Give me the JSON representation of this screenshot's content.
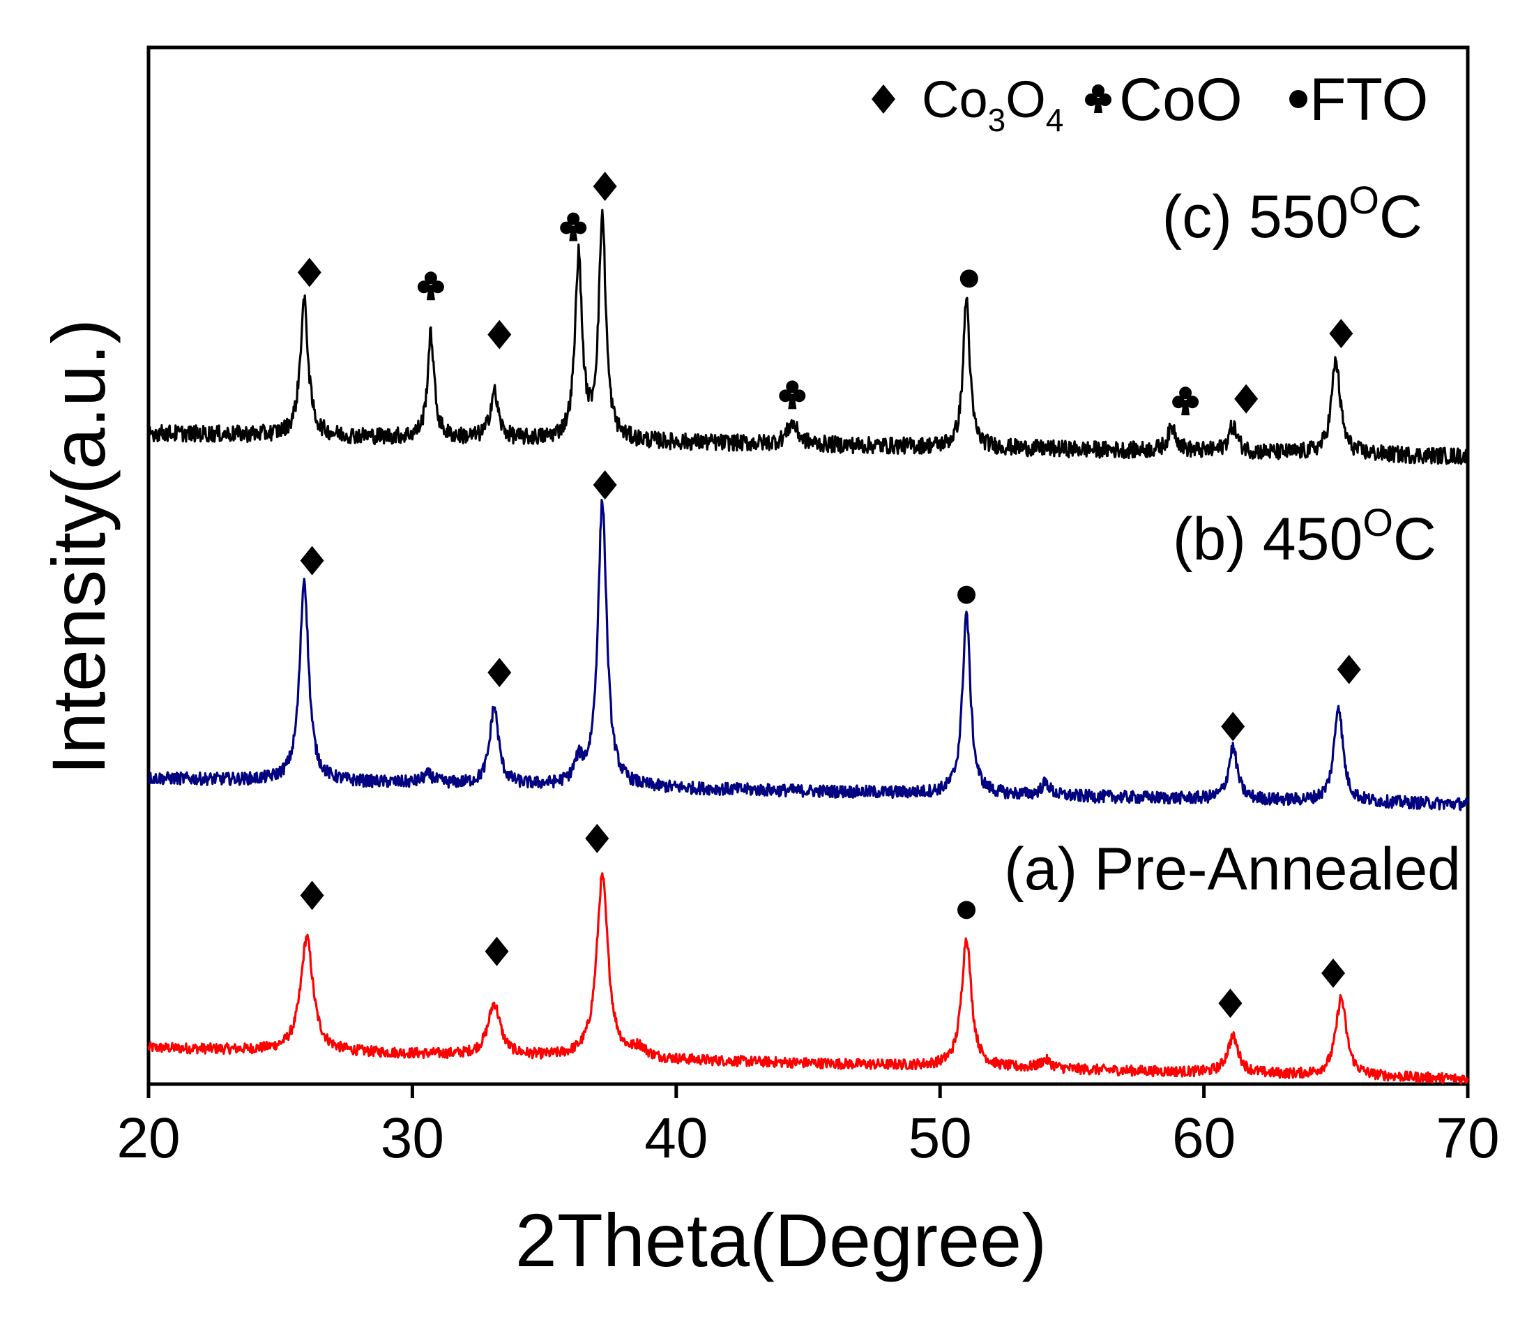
{
  "chart_data": {
    "type": "line",
    "xlabel": "2Theta(Degree)",
    "ylabel": "Intensity(a.u.)",
    "xlim": [
      20,
      70
    ],
    "ylim": [
      0,
      100
    ],
    "x_ticks": [
      20,
      30,
      40,
      50,
      60,
      70
    ],
    "x_tick_labels": [
      "20",
      "30",
      "40",
      "50",
      "60",
      "70"
    ],
    "y_ticks_shown": false,
    "grid": false,
    "legend": {
      "position": "top-right",
      "entries": [
        {
          "symbol": "diamond",
          "symbol_glyph": "◆",
          "label_main": "Co",
          "sub1": "3",
          "label_mid": "O",
          "sub2": "4"
        },
        {
          "symbol": "club",
          "symbol_glyph": "♣",
          "label": "CoO"
        },
        {
          "symbol": "dot",
          "symbol_glyph": "●",
          "label": "FTO"
        }
      ]
    },
    "series": [
      {
        "name": "(a) Pre-Annealed",
        "label_text": "(a) Pre-Annealed",
        "color": "#ff0000",
        "baseline": 3.5,
        "slope": 0.06,
        "noise": 0.5,
        "peaks": [
          {
            "x": 26.0,
            "height": 11,
            "width": 0.28
          },
          {
            "x": 33.1,
            "height": 5,
            "width": 0.28
          },
          {
            "x": 37.2,
            "height": 17.5,
            "width": 0.26
          },
          {
            "x": 38.6,
            "height": 0.9,
            "width": 0.3
          },
          {
            "x": 51.0,
            "height": 12.5,
            "width": 0.22
          },
          {
            "x": 54.0,
            "height": 0.8,
            "width": 0.25
          },
          {
            "x": 61.1,
            "height": 3.5,
            "width": 0.25
          },
          {
            "x": 65.2,
            "height": 7.5,
            "width": 0.24
          }
        ],
        "markers": [
          {
            "x": 26.2,
            "y": 18.2,
            "symbol": "diamond"
          },
          {
            "x": 33.2,
            "y": 12.8,
            "symbol": "diamond"
          },
          {
            "x": 37.0,
            "y": 23.7,
            "symbol": "diamond"
          },
          {
            "x": 51.0,
            "y": 16.8,
            "symbol": "dot"
          },
          {
            "x": 61.0,
            "y": 7.8,
            "symbol": "diamond"
          },
          {
            "x": 64.9,
            "y": 10.7,
            "symbol": "diamond"
          }
        ]
      },
      {
        "name": "(b) 450°C",
        "label_main": "(b) 450",
        "label_sup": "O",
        "label_end": "C",
        "color": "#000080",
        "baseline": 29.5,
        "slope": 0.05,
        "noise": 0.6,
        "peaks": [
          {
            "x": 25.9,
            "height": 19.5,
            "width": 0.2
          },
          {
            "x": 30.6,
            "height": 0.8,
            "width": 0.25
          },
          {
            "x": 33.1,
            "height": 7.5,
            "width": 0.2
          },
          {
            "x": 36.3,
            "height": 2.0,
            "width": 0.2
          },
          {
            "x": 37.2,
            "height": 27.5,
            "width": 0.2
          },
          {
            "x": 51.0,
            "height": 17.5,
            "width": 0.18
          },
          {
            "x": 54.0,
            "height": 1.2,
            "width": 0.2
          },
          {
            "x": 61.1,
            "height": 5.0,
            "width": 0.2
          },
          {
            "x": 65.1,
            "height": 9.3,
            "width": 0.2
          }
        ],
        "markers": [
          {
            "x": 26.2,
            "y": 50.5,
            "symbol": "diamond"
          },
          {
            "x": 33.3,
            "y": 39.7,
            "symbol": "diamond"
          },
          {
            "x": 37.3,
            "y": 57.8,
            "symbol": "diamond"
          },
          {
            "x": 51.0,
            "y": 47.2,
            "symbol": "dot"
          },
          {
            "x": 61.1,
            "y": 34.5,
            "symbol": "diamond"
          },
          {
            "x": 65.5,
            "y": 40.0,
            "symbol": "diamond"
          }
        ]
      },
      {
        "name": "(c) 550°C",
        "label_main": "(c) 550",
        "label_sup": "O",
        "label_end": "C",
        "color": "#000000",
        "baseline": 62.8,
        "slope": 0.045,
        "noise": 0.8,
        "peaks": [
          {
            "x": 25.9,
            "height": 13.0,
            "width": 0.18
          },
          {
            "x": 30.7,
            "height": 10.0,
            "width": 0.15
          },
          {
            "x": 33.1,
            "height": 4.5,
            "width": 0.18
          },
          {
            "x": 36.3,
            "height": 17.5,
            "width": 0.16
          },
          {
            "x": 37.2,
            "height": 21.5,
            "width": 0.16
          },
          {
            "x": 44.4,
            "height": 2.0,
            "width": 0.25
          },
          {
            "x": 51.0,
            "height": 14.5,
            "width": 0.15
          },
          {
            "x": 58.8,
            "height": 2.3,
            "width": 0.2
          },
          {
            "x": 61.1,
            "height": 2.5,
            "width": 0.2
          },
          {
            "x": 65.0,
            "height": 9.0,
            "width": 0.2
          }
        ],
        "markers": [
          {
            "x": 26.1,
            "y": 78.3,
            "symbol": "diamond"
          },
          {
            "x": 30.7,
            "y": 77.1,
            "symbol": "club"
          },
          {
            "x": 33.3,
            "y": 72.3,
            "symbol": "diamond"
          },
          {
            "x": 36.1,
            "y": 82.8,
            "symbol": "club"
          },
          {
            "x": 37.3,
            "y": 86.6,
            "symbol": "diamond"
          },
          {
            "x": 44.4,
            "y": 66.6,
            "symbol": "club"
          },
          {
            "x": 51.1,
            "y": 77.7,
            "symbol": "dot"
          },
          {
            "x": 59.3,
            "y": 66.0,
            "symbol": "club"
          },
          {
            "x": 61.6,
            "y": 66.1,
            "symbol": "diamond"
          },
          {
            "x": 65.2,
            "y": 72.4,
            "symbol": "diamond"
          }
        ]
      }
    ]
  }
}
